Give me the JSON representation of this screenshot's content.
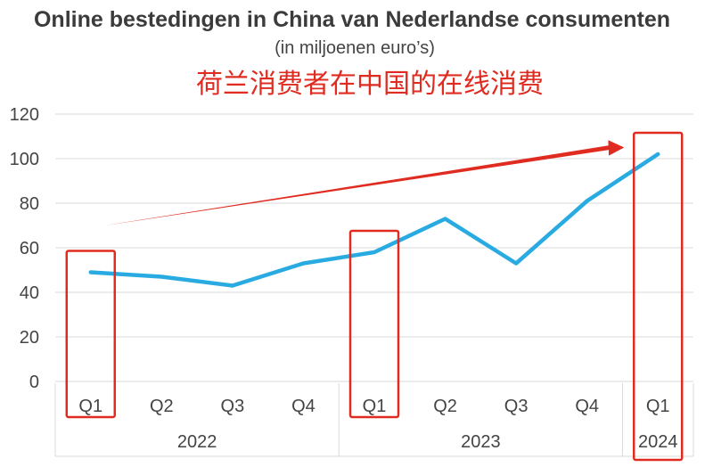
{
  "chart_data": {
    "type": "line",
    "title": "Online bestedingen in China van Nederlandse consumenten",
    "subtitle": "(in miljoenen euro’s)",
    "annotation": "荷兰消费者在中国的在线消费",
    "categories": [
      "Q1",
      "Q2",
      "Q3",
      "Q4",
      "Q1",
      "Q2",
      "Q3",
      "Q4",
      "Q1"
    ],
    "years": [
      {
        "label": "2022",
        "start": 0,
        "end": 3
      },
      {
        "label": "2023",
        "start": 4,
        "end": 7
      },
      {
        "label": "2024",
        "start": 8,
        "end": 8
      }
    ],
    "series": [
      {
        "values": [
          49,
          47,
          43,
          53,
          58,
          73,
          53,
          81,
          102
        ]
      }
    ],
    "ylim": [
      0,
      120
    ],
    "yticks": [
      0,
      20,
      40,
      60,
      80,
      100,
      120
    ],
    "grid": true,
    "highlighted_categories": [
      0,
      4,
      8
    ],
    "trend_arrow": {
      "from": {
        "x": 0.7,
        "y": 70
      },
      "to": {
        "x": 8,
        "y": 105
      }
    },
    "colors": {
      "line": "#29abe2",
      "highlight": "#e02b20",
      "grid": "#d9d9d9",
      "text": "#3b3b3b"
    }
  }
}
